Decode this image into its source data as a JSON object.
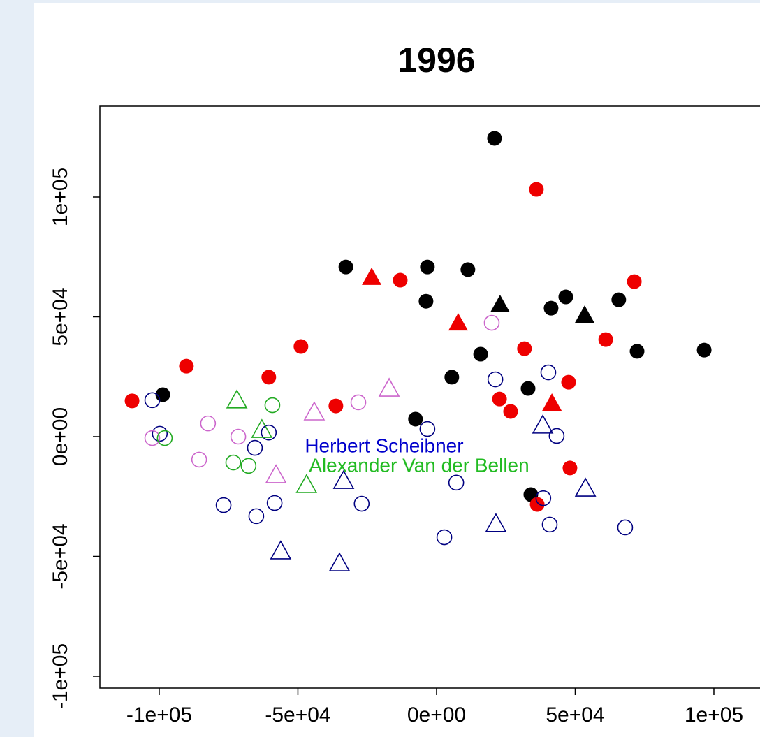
{
  "chart_data": {
    "type": "scatter",
    "title": "1996",
    "xlim": [
      -121400,
      119650
    ],
    "ylim": [
      -104960,
      137900
    ],
    "xticks": [
      {
        "value": -100000,
        "label": "-1e+05"
      },
      {
        "value": -50000,
        "label": "-5e+04"
      },
      {
        "value": 0,
        "label": "0e+00"
      },
      {
        "value": 50000,
        "label": "5e+04"
      },
      {
        "value": 100000,
        "label": "1e+05"
      }
    ],
    "yticks": [
      {
        "value": -100000,
        "label": "-1e+05"
      },
      {
        "value": -50000,
        "label": "-5e+04"
      },
      {
        "value": 0,
        "label": "0e+00"
      },
      {
        "value": 50000,
        "label": "5e+04"
      },
      {
        "value": 100000,
        "label": "1e+05"
      }
    ],
    "grid": false,
    "series": [
      {
        "color": "#000000",
        "marker": "circle",
        "filled": true,
        "x": [
          20900,
          -98700,
          -32700,
          -3300,
          11300,
          -3800,
          46600,
          41300,
          65700,
          15900,
          72300,
          96500,
          5500,
          33000,
          -7600,
          34000
        ],
        "values": [
          124500,
          17500,
          70800,
          70800,
          69700,
          56500,
          58300,
          53600,
          57100,
          34400,
          35600,
          36100,
          24800,
          20100,
          7300,
          -24200
        ]
      },
      {
        "color": "#ee0000",
        "marker": "circle",
        "filled": true,
        "x": [
          36000,
          -13100,
          71300,
          -48900,
          -90200,
          31700,
          61000,
          -60500,
          -109800,
          -36300,
          47600,
          22700,
          26700,
          48100,
          36300
        ],
        "values": [
          103200,
          65300,
          64700,
          37600,
          29400,
          36700,
          40500,
          24800,
          14900,
          12800,
          22700,
          15700,
          10500,
          -13100,
          -28300
        ]
      },
      {
        "color": "#ee0000",
        "marker": "triangle",
        "filled": true,
        "x": [
          -23400,
          7800,
          41600
        ],
        "values": [
          66500,
          47500,
          14000
        ]
      },
      {
        "color": "#000000",
        "marker": "triangle",
        "filled": true,
        "x": [
          22900,
          53400
        ],
        "values": [
          55100,
          50700
        ]
      },
      {
        "color": "#000080",
        "marker": "circle",
        "filled": false,
        "x": [
          -102500,
          -99800,
          -65500,
          -60500,
          -3300,
          21200,
          40300,
          43300,
          7100,
          -58400,
          -76800,
          -65000,
          -27000,
          38500,
          40800,
          2800,
          68000
        ],
        "values": [
          15200,
          1200,
          -4700,
          1700,
          3200,
          23900,
          26800,
          300,
          -19200,
          -27700,
          -28600,
          -33200,
          -28000,
          -25700,
          -36700,
          -42000,
          -37900
        ]
      },
      {
        "color": "#000080",
        "marker": "triangle",
        "filled": false,
        "x": [
          38300,
          -33500,
          53700,
          21400,
          -56200,
          -35000
        ],
        "values": [
          4700,
          -18400,
          -21600,
          -36400,
          -47800,
          -52800
        ]
      },
      {
        "color": "#cc66cc",
        "marker": "circle",
        "filled": false,
        "x": [
          19900,
          -82400,
          -102500,
          -71500,
          -85600,
          -28200
        ],
        "values": [
          47500,
          5500,
          -600,
          0,
          -9600,
          14300
        ]
      },
      {
        "color": "#cc66cc",
        "marker": "triangle",
        "filled": false,
        "x": [
          -17100,
          -44100,
          -57900
        ],
        "values": [
          20100,
          10200,
          -16000
        ]
      },
      {
        "color": "#22aa22",
        "marker": "circle",
        "filled": false,
        "x": [
          -59200,
          -98000,
          -73300,
          -67800
        ],
        "values": [
          13100,
          -600,
          -10800,
          -12200
        ]
      },
      {
        "color": "#22aa22",
        "marker": "triangle",
        "filled": false,
        "x": [
          -72000,
          -63000,
          -46900
        ],
        "values": [
          15200,
          2900,
          -20100
        ]
      }
    ],
    "annotations": [
      {
        "text": "Herbert Scheibner",
        "x": -18900,
        "y": -4400,
        "color": "#0000cc"
      },
      {
        "text": "Alexander Van der Bellen",
        "x": -6300,
        "y": -12500,
        "color": "#22bb22"
      }
    ]
  }
}
